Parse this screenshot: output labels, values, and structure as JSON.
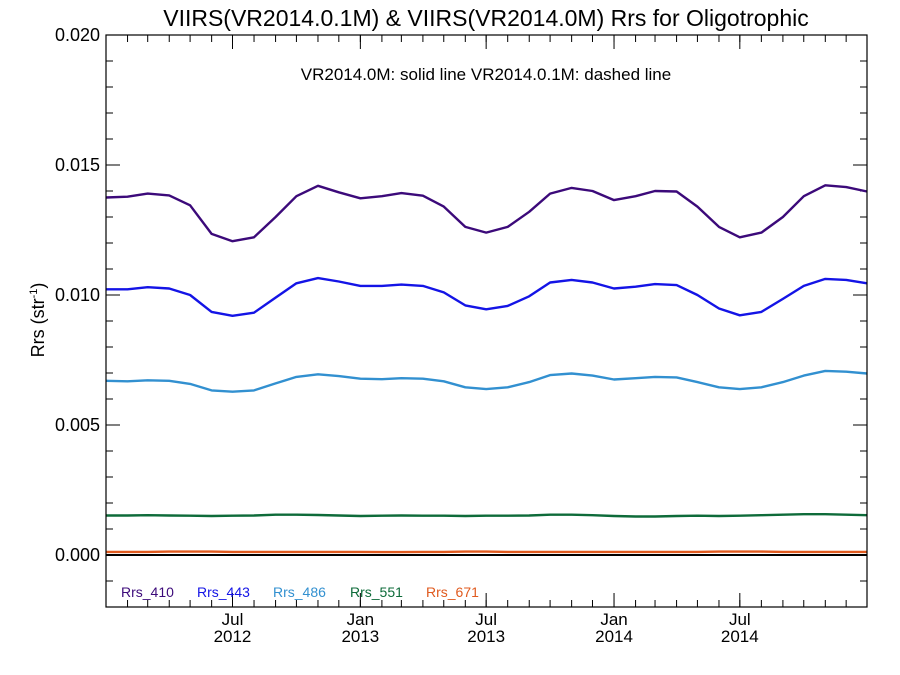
{
  "chart_data": {
    "type": "line",
    "title": "VIIRS(VR2014.0.1M) & VIIRS(VR2014.0M)  Rrs for Oligotrophic",
    "subtitle": "VR2014.0M: solid line   VR2014.0.1M: dashed line",
    "ylabel_main": "Rrs (str",
    "ylabel_sup": "-1",
    "ylabel_close": ")",
    "ylim": [
      -0.002,
      0.02
    ],
    "xlim": [
      "2012-01-01",
      "2014-12-31"
    ],
    "yticks": [
      {
        "value": 0.0,
        "label": "0.000"
      },
      {
        "value": 0.005,
        "label": "0.005"
      },
      {
        "value": 0.01,
        "label": "0.010"
      },
      {
        "value": 0.015,
        "label": "0.015"
      },
      {
        "value": 0.02,
        "label": "0.020"
      }
    ],
    "xticks": [
      {
        "date": "2012-07-01",
        "month": "Jul",
        "year": "2012"
      },
      {
        "date": "2013-01-01",
        "month": "Jan",
        "year": "2013"
      },
      {
        "date": "2013-07-01",
        "month": "Jul",
        "year": "2013"
      },
      {
        "date": "2014-01-01",
        "month": "Jan",
        "year": "2014"
      },
      {
        "date": "2014-07-01",
        "month": "Jul",
        "year": "2014"
      }
    ],
    "zero_line": 0.0,
    "x": [
      "2012-01-01",
      "2012-02-01",
      "2012-03-01",
      "2012-04-01",
      "2012-05-01",
      "2012-06-01",
      "2012-07-01",
      "2012-08-01",
      "2012-09-01",
      "2012-10-01",
      "2012-11-01",
      "2012-12-01",
      "2013-01-01",
      "2013-02-01",
      "2013-03-01",
      "2013-04-01",
      "2013-05-01",
      "2013-06-01",
      "2013-07-01",
      "2013-08-01",
      "2013-09-01",
      "2013-10-01",
      "2013-11-01",
      "2013-12-01",
      "2014-01-01",
      "2014-02-01",
      "2014-03-01",
      "2014-04-01",
      "2014-05-01",
      "2014-06-01",
      "2014-07-01",
      "2014-08-01",
      "2014-09-01",
      "2014-10-01",
      "2014-11-01",
      "2014-12-01",
      "2014-12-31"
    ],
    "series": [
      {
        "name": "Rrs_410",
        "color": "#3c0a7a",
        "values": [
          0.01375,
          0.01378,
          0.0139,
          0.01383,
          0.01345,
          0.01235,
          0.01207,
          0.01222,
          0.013,
          0.0138,
          0.0142,
          0.01395,
          0.01372,
          0.0138,
          0.01392,
          0.01382,
          0.0134,
          0.01262,
          0.0124,
          0.01262,
          0.0132,
          0.0139,
          0.01412,
          0.014,
          0.01365,
          0.0138,
          0.014,
          0.01398,
          0.0134,
          0.01262,
          0.01222,
          0.0124,
          0.013,
          0.0138,
          0.01422,
          0.01415,
          0.01398
        ]
      },
      {
        "name": "Rrs_443",
        "color": "#1414e6",
        "values": [
          0.01022,
          0.01022,
          0.0103,
          0.01025,
          0.01,
          0.00935,
          0.0092,
          0.00932,
          0.0099,
          0.01045,
          0.01065,
          0.01052,
          0.01035,
          0.01035,
          0.0104,
          0.01035,
          0.0101,
          0.0096,
          0.00945,
          0.00958,
          0.00995,
          0.01048,
          0.01058,
          0.01048,
          0.01025,
          0.01032,
          0.01042,
          0.01038,
          0.01,
          0.00948,
          0.00922,
          0.00935,
          0.00985,
          0.01035,
          0.01062,
          0.01058,
          0.01045
        ]
      },
      {
        "name": "Rrs_486",
        "color": "#3290d0",
        "values": [
          0.0067,
          0.00668,
          0.00672,
          0.0067,
          0.00658,
          0.00633,
          0.00628,
          0.00633,
          0.0066,
          0.00685,
          0.00695,
          0.00688,
          0.00678,
          0.00676,
          0.0068,
          0.00678,
          0.00668,
          0.00645,
          0.00638,
          0.00645,
          0.00665,
          0.00692,
          0.00698,
          0.0069,
          0.00675,
          0.0068,
          0.00685,
          0.00683,
          0.00665,
          0.00645,
          0.00638,
          0.00645,
          0.00665,
          0.0069,
          0.00708,
          0.00705,
          0.00698
        ]
      },
      {
        "name": "Rrs_551",
        "color": "#0e6b3a",
        "values": [
          0.00152,
          0.00152,
          0.00153,
          0.00152,
          0.00151,
          0.0015,
          0.00151,
          0.00152,
          0.00155,
          0.00155,
          0.00154,
          0.00152,
          0.0015,
          0.00151,
          0.00152,
          0.00151,
          0.00151,
          0.0015,
          0.00151,
          0.00151,
          0.00152,
          0.00155,
          0.00155,
          0.00153,
          0.0015,
          0.00148,
          0.00148,
          0.0015,
          0.00151,
          0.0015,
          0.00151,
          0.00153,
          0.00155,
          0.00157,
          0.00157,
          0.00155,
          0.00153
        ]
      },
      {
        "name": "Rrs_671",
        "color": "#e05a1e",
        "values": [
          0.00012,
          0.00012,
          0.00012,
          0.00013,
          0.00013,
          0.00013,
          0.00012,
          0.00012,
          0.00012,
          0.00012,
          0.00012,
          0.00012,
          0.00012,
          0.00011,
          0.00011,
          0.00012,
          0.00012,
          0.00013,
          0.00013,
          0.00012,
          0.00012,
          0.00012,
          0.00012,
          0.00012,
          0.00012,
          0.00012,
          0.00012,
          0.00012,
          0.00012,
          0.00013,
          0.00013,
          0.00013,
          0.00012,
          0.00012,
          0.00012,
          0.00012,
          0.00012
        ]
      }
    ],
    "legend_position": "bottom-left",
    "grid": false
  }
}
